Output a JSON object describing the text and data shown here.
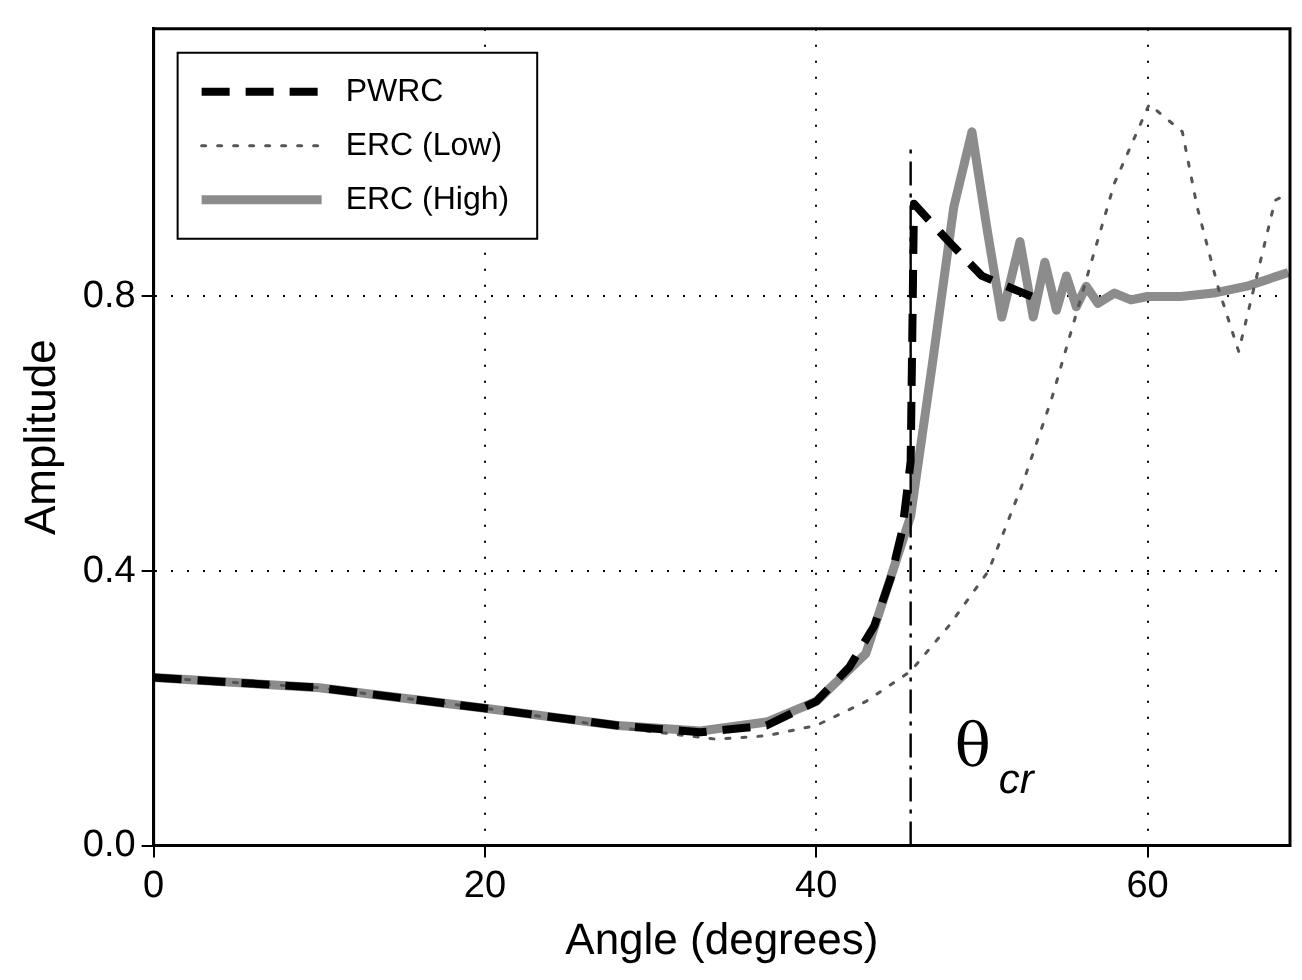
{
  "chart_data": {
    "type": "line",
    "xlabel": "Angle (degrees)",
    "ylabel": "Amplitude",
    "xlim": [
      0,
      68.6
    ],
    "ylim": [
      0,
      1.19
    ],
    "xticks": [
      0,
      20,
      40,
      60
    ],
    "yticks": [
      {
        "value": 0,
        "label": "0.0"
      },
      {
        "value": 0.4,
        "label": "0.4"
      },
      {
        "value": 0.8,
        "label": "0.8"
      }
    ],
    "grid": true,
    "legend": "top left",
    "marker": "none",
    "series": [
      {
        "name": "PWRC",
        "color": "#000000",
        "line_style": "dashed",
        "x": [
          0,
          10,
          20,
          28,
          33,
          37,
          40,
          42,
          43.5,
          44.5,
          45.2,
          45.7,
          45.9,
          48,
          50,
          53
        ],
        "values": [
          0.245,
          0.23,
          0.2,
          0.175,
          0.165,
          0.175,
          0.21,
          0.26,
          0.32,
          0.39,
          0.46,
          0.56,
          0.935,
          0.88,
          0.83,
          0.8
        ]
      },
      {
        "name": "ERC (Low)",
        "color": "#555555",
        "line_style": "dotted",
        "x": [
          0,
          10,
          20,
          28,
          34,
          37,
          40,
          43,
          45.7,
          48,
          50.4,
          52.5,
          54.2,
          56,
          58,
          60.1,
          62.1,
          63,
          64.3,
          65.5,
          66.5,
          67.7,
          68.5
        ],
        "values": [
          0.245,
          0.23,
          0.2,
          0.172,
          0.155,
          0.16,
          0.175,
          0.21,
          0.254,
          0.32,
          0.4,
          0.53,
          0.65,
          0.8,
          0.965,
          1.08,
          1.04,
          0.93,
          0.81,
          0.72,
          0.82,
          0.94,
          0.95
        ]
      },
      {
        "name": "ERC (High)",
        "color": "#8c8c8c",
        "line_style": "solid",
        "x": [
          0,
          10,
          20,
          28,
          33,
          37,
          40,
          43,
          45.7,
          47,
          48.3,
          49.4,
          50.3,
          51.2,
          52.3,
          53.1,
          53.8,
          54.5,
          55.1,
          55.7,
          56.3,
          57,
          58,
          59,
          60,
          62,
          64,
          66,
          68.5
        ],
        "values": [
          0.245,
          0.23,
          0.2,
          0.175,
          0.167,
          0.18,
          0.21,
          0.28,
          0.48,
          0.7,
          0.93,
          1.04,
          0.9,
          0.77,
          0.88,
          0.77,
          0.85,
          0.78,
          0.83,
          0.785,
          0.815,
          0.79,
          0.805,
          0.795,
          0.8,
          0.8,
          0.805,
          0.815,
          0.835
        ]
      }
    ],
    "ref_lines": [
      {
        "axis": "x",
        "value": 45.7,
        "label": "θ$_{cr}$",
        "color": "#000000",
        "line_style": "dashed"
      }
    ]
  }
}
